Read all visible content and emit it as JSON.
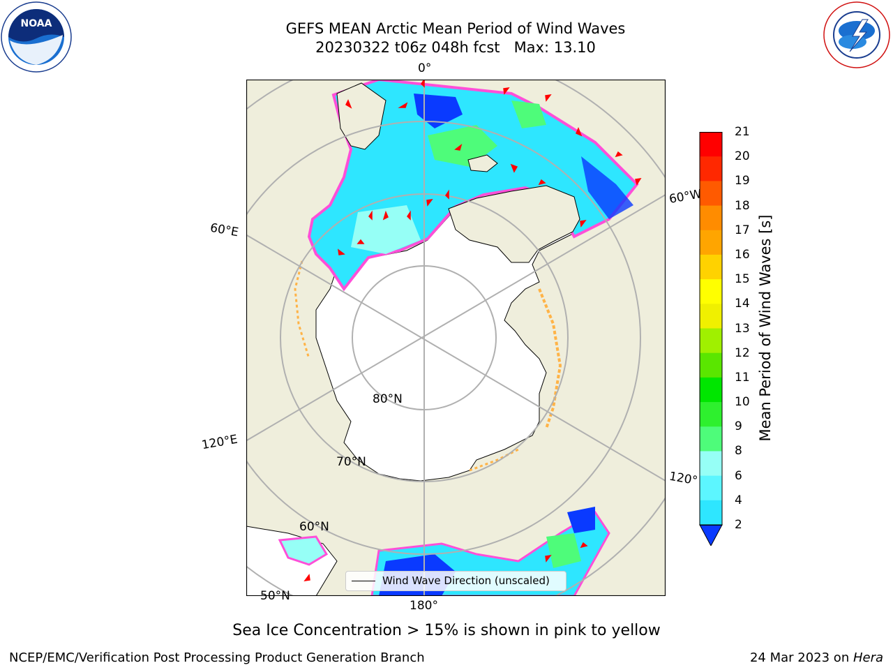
{
  "title": {
    "line1": "GEFS MEAN Arctic Mean Period of Wind Waves",
    "line2": "20230322 t06z 048h fcst   Max: 13.10"
  },
  "map_labels": {
    "lon_0": "0°",
    "lon_60w": "60°W",
    "lon_60e": "60°E",
    "lon_120e": "120°E",
    "lon_120w": "120°",
    "lon_180": "180°",
    "lat_80": "80°N",
    "lat_70": "70°N",
    "lat_60": "60°N",
    "lat_50": "50°N"
  },
  "legend": {
    "label": "Wind Wave Direction (unscaled)"
  },
  "colorbar": {
    "label": "Mean Period of Wind Waves [s]",
    "ticks": [
      "2",
      "4",
      "6",
      "8",
      "9",
      "10",
      "11",
      "12",
      "13",
      "14",
      "15",
      "16",
      "17",
      "18",
      "19",
      "20",
      "21"
    ],
    "colors": [
      "#0a3aff",
      "#00d2ff",
      "#2ee6ff",
      "#5cf6ff",
      "#96fff6",
      "#4efc7a",
      "#2ef02e",
      "#00e600",
      "#5ae600",
      "#a0f000",
      "#d2ff00",
      "#f0f000",
      "#ffff00",
      "#ffd200",
      "#ffa500",
      "#ff8c00",
      "#ff5a00",
      "#ff2800",
      "#ff0000"
    ]
  },
  "note": "Sea Ice Concentration > 15% is shown in pink to yellow",
  "footer": {
    "left": "NCEP/EMC/Verification Post Processing Product Generation Branch",
    "date": "24 Mar 2023 on ",
    "system": "Hera"
  },
  "colors": {
    "land": "#efeedc",
    "ice": "#ffffff",
    "grid": "#b0b0b0",
    "arrow": "#ff0000"
  },
  "icons": [
    "noaa-logo-icon",
    "nws-logo-icon",
    "wind-arrow-icon"
  ]
}
